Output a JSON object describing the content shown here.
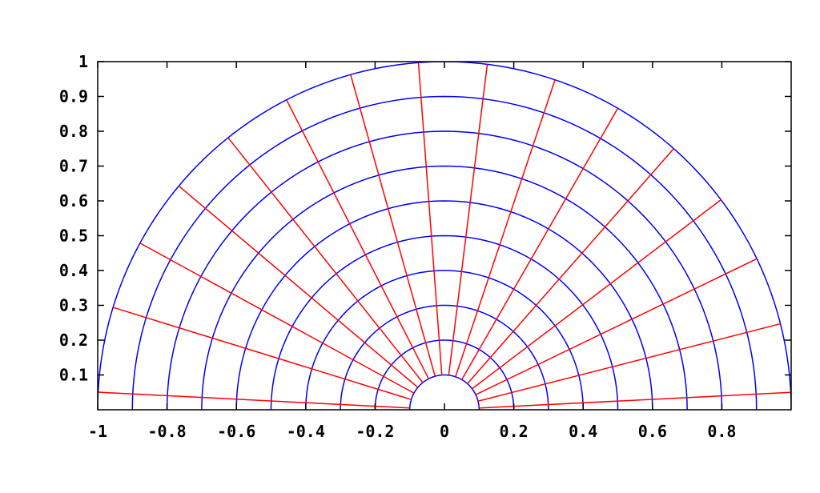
{
  "chart_data": {
    "type": "line",
    "title": "",
    "xlabel": "",
    "ylabel": "",
    "xlim": [
      -1,
      1
    ],
    "ylim": [
      0,
      1
    ],
    "grid": false,
    "x_ticks": [
      -1,
      -0.8,
      -0.6,
      -0.4,
      -0.2,
      0,
      0.2,
      0.4,
      0.6,
      0.8
    ],
    "x_tick_labels": [
      "-1",
      "-0.8",
      "-0.6",
      "-0.4",
      "-0.2",
      "0",
      "0.2",
      "0.4",
      "0.6",
      "0.8"
    ],
    "y_ticks": [
      0.1,
      0.2,
      0.3,
      0.4,
      0.5,
      0.6,
      0.7,
      0.8,
      0.9,
      1
    ],
    "y_tick_labels": [
      "0.1",
      "0.2",
      "0.3",
      "0.4",
      "0.5",
      "0.6",
      "0.7",
      "0.8",
      "0.9",
      "1"
    ],
    "series": [
      {
        "kind": "circular-arcs",
        "color": "#0000ff",
        "radii": [
          0.1,
          0.2,
          0.3,
          0.4,
          0.5,
          0.6,
          0.7,
          0.8,
          0.9,
          1.0
        ],
        "angle_range_deg": [
          0,
          180
        ]
      },
      {
        "kind": "radial-lines",
        "color": "#ff0000",
        "radius_range": [
          0.1,
          1.0
        ],
        "angles_deg": [
          2.86,
          14.3,
          25.7,
          37.1,
          48.6,
          60.0,
          71.4,
          82.9,
          94.3,
          105.7,
          117.1,
          128.6,
          140.0,
          151.4,
          162.9,
          177.1
        ]
      }
    ]
  }
}
